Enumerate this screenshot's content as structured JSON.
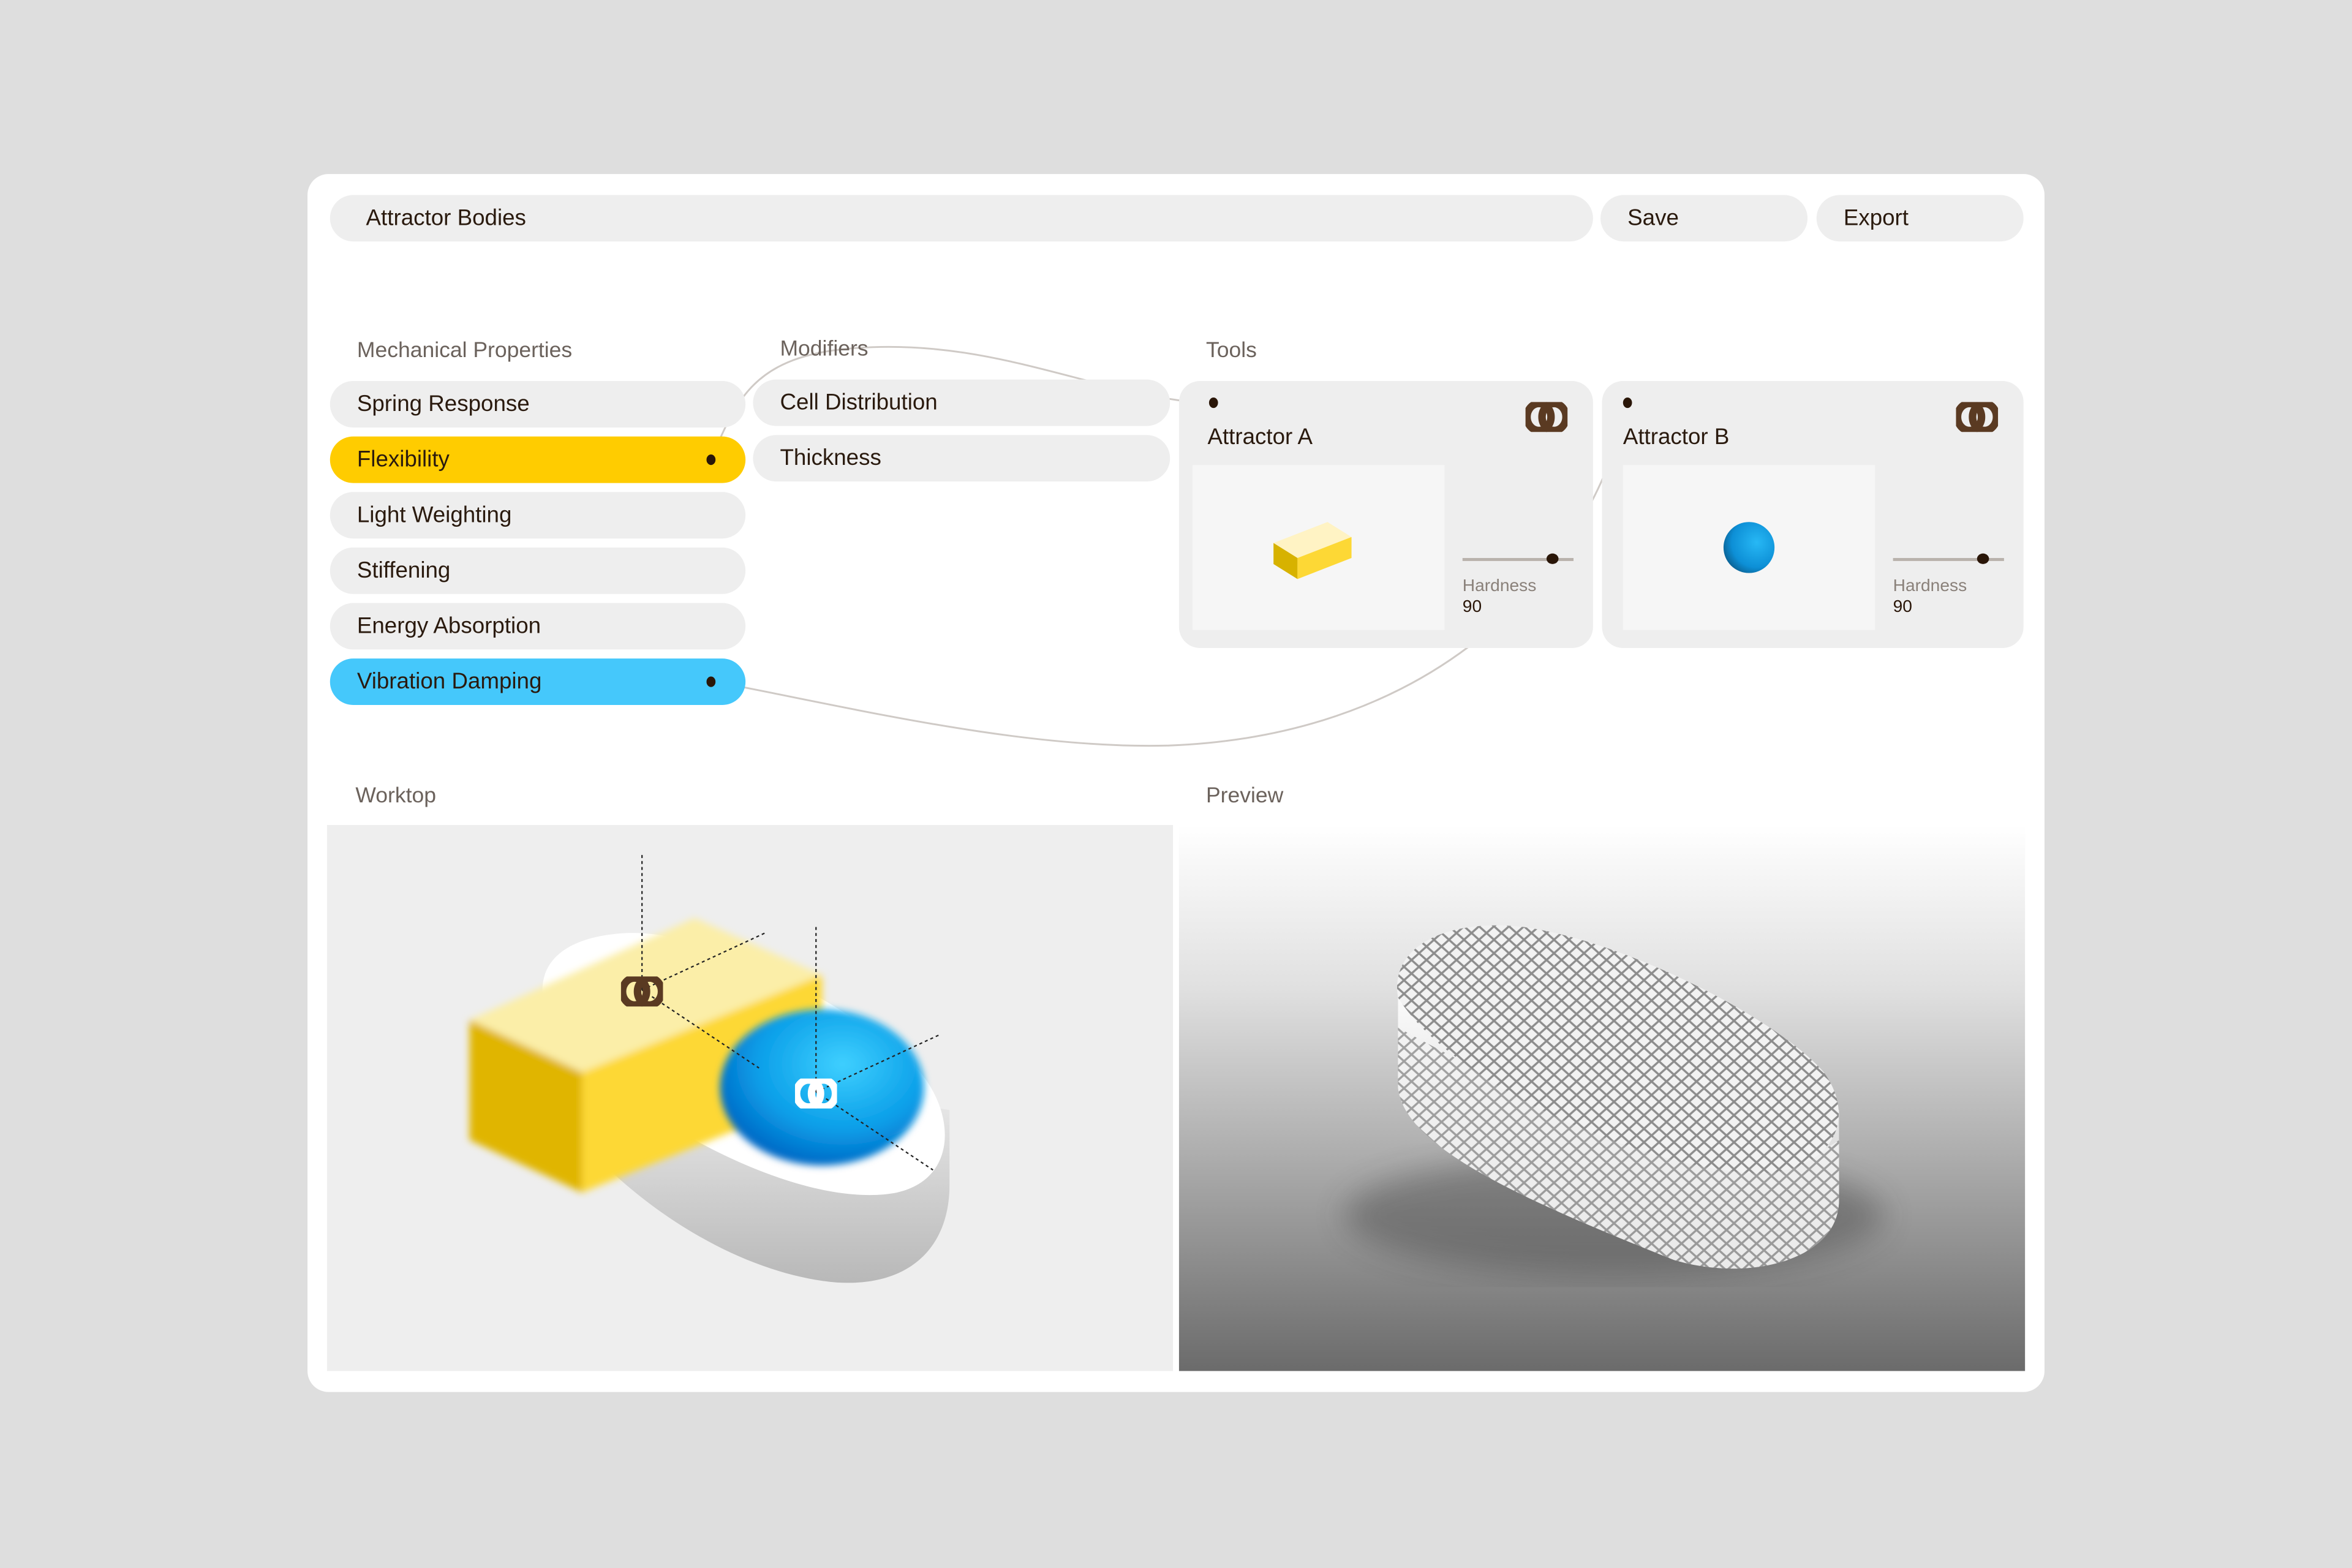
{
  "header": {
    "title": "Attractor Bodies",
    "save_label": "Save",
    "export_label": "Export"
  },
  "mechanical": {
    "heading": "Mechanical Properties",
    "items": [
      {
        "label": "Spring Response"
      },
      {
        "label": "Flexibility",
        "active": true,
        "color": "#ffcc00"
      },
      {
        "label": "Light Weighting"
      },
      {
        "label": "Stiffening"
      },
      {
        "label": "Energy Absorption"
      },
      {
        "label": "Vibration Damping",
        "active": true,
        "color": "#45c8fb"
      }
    ]
  },
  "modifiers": {
    "heading": "Modifiers",
    "items": [
      {
        "label": "Cell Distribution"
      },
      {
        "label": "Thickness"
      }
    ]
  },
  "tools": {
    "heading": "Tools",
    "items": [
      {
        "name": "Attractor A",
        "param_label": "Hardness",
        "param_value": "90",
        "shape": "yellow-box"
      },
      {
        "name": "Attractor B",
        "param_label": "Hardness",
        "param_value": "90",
        "shape": "blue-sphere"
      }
    ]
  },
  "worktop": {
    "heading": "Worktop"
  },
  "preview": {
    "heading": "Preview"
  },
  "colors": {
    "yellow": "#ffcc00",
    "blue": "#45c8fb",
    "icon": "#5a3a22"
  }
}
